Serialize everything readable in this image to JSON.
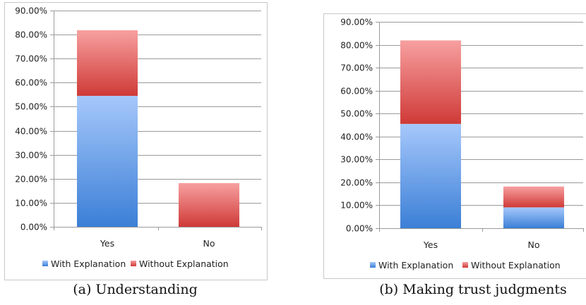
{
  "captions": [
    "(a) Understanding",
    "(b) Making trust judgments"
  ],
  "colors": {
    "with_top": "#a6c8fb",
    "with_bottom": "#3b7fd6",
    "without_top": "#f7a0a0",
    "without_bottom": "#cf3a37",
    "grid": "#9a9a9a",
    "frame": "#c8c8c8"
  },
  "chart_data": [
    {
      "type": "bar",
      "stacked": true,
      "caption": "(a) Understanding",
      "categories": [
        "Yes",
        "No"
      ],
      "series": [
        {
          "name": "With Explanation",
          "values": [
            54.5,
            0
          ]
        },
        {
          "name": "Without Explanation",
          "values": [
            27.3,
            18.2
          ]
        }
      ],
      "ylim": [
        0,
        90
      ],
      "yticks": [
        "0.00%",
        "10.00%",
        "20.00%",
        "30.00%",
        "40.00%",
        "50.00%",
        "60.00%",
        "70.00%",
        "80.00%",
        "90.00%"
      ],
      "grid": true,
      "legend": "bottom"
    },
    {
      "type": "bar",
      "stacked": true,
      "caption": "(b) Making trust judgments",
      "categories": [
        "Yes",
        "No"
      ],
      "series": [
        {
          "name": "With Explanation",
          "values": [
            45.5,
            9.1
          ]
        },
        {
          "name": "Without Explanation",
          "values": [
            36.4,
            9.1
          ]
        }
      ],
      "ylim": [
        0,
        90
      ],
      "yticks": [
        "0.00%",
        "10.00%",
        "20.00%",
        "30.00%",
        "40.00%",
        "50.00%",
        "60.00%",
        "70.00%",
        "80.00%",
        "90.00%"
      ],
      "grid": true,
      "legend": "bottom"
    }
  ]
}
